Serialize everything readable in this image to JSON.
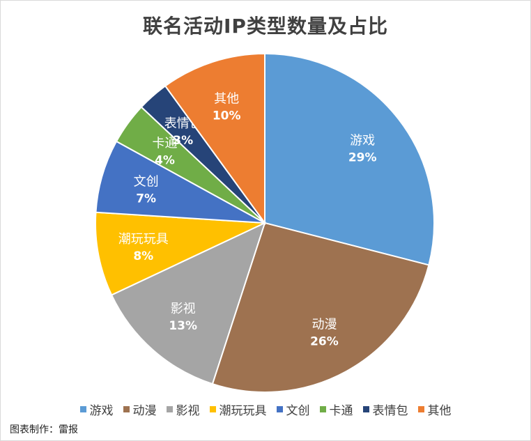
{
  "chart_data": {
    "type": "pie",
    "title": "联名活动IP类型数量及占比",
    "categories": [
      "游戏",
      "动漫",
      "影视",
      "潮玩玩具",
      "文创",
      "卡通",
      "表情包",
      "其他"
    ],
    "values": [
      29,
      26,
      13,
      8,
      7,
      4,
      3,
      10
    ],
    "labels": [
      "29%",
      "26%",
      "13%",
      "8%",
      "7%",
      "4%",
      "3%",
      "10%"
    ],
    "colors": [
      "#5b9bd5",
      "#9e7250",
      "#a5a5a5",
      "#ffc000",
      "#4472c4",
      "#70ad47",
      "#264478",
      "#ed7d31"
    ],
    "legend_position": "bottom"
  },
  "footer": {
    "credit": "图表制作：雷报"
  },
  "watermark": "雷报"
}
